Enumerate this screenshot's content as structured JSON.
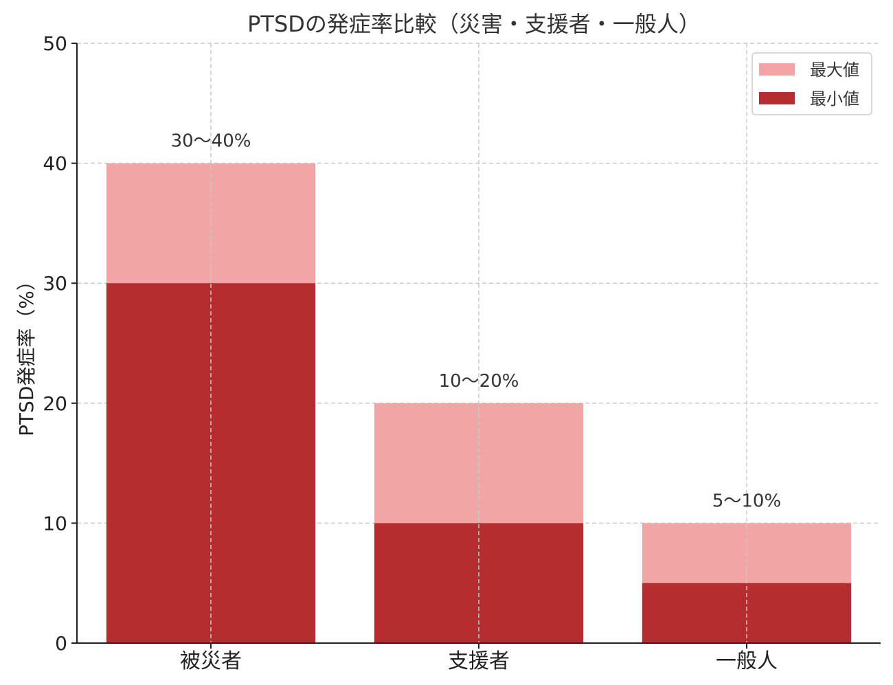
{
  "chart_data": {
    "type": "bar",
    "title": "PTSDの発症率比較（災害・支援者・一般人）",
    "xlabel": "",
    "ylabel": "PTSD発症率（%）",
    "ylim": [
      0,
      50
    ],
    "yticks": [
      0,
      10,
      20,
      30,
      40,
      50
    ],
    "categories": [
      "被災者",
      "支援者",
      "一般人"
    ],
    "series": [
      {
        "name": "最大値",
        "values": [
          40,
          20,
          10
        ],
        "color": "#f2a5a5"
      },
      {
        "name": "最小値",
        "values": [
          30,
          10,
          5
        ],
        "color": "#b52d2f"
      }
    ],
    "data_labels": [
      "30〜40%",
      "10〜20%",
      "5〜10%"
    ],
    "grid": true,
    "legend": "top-right"
  }
}
